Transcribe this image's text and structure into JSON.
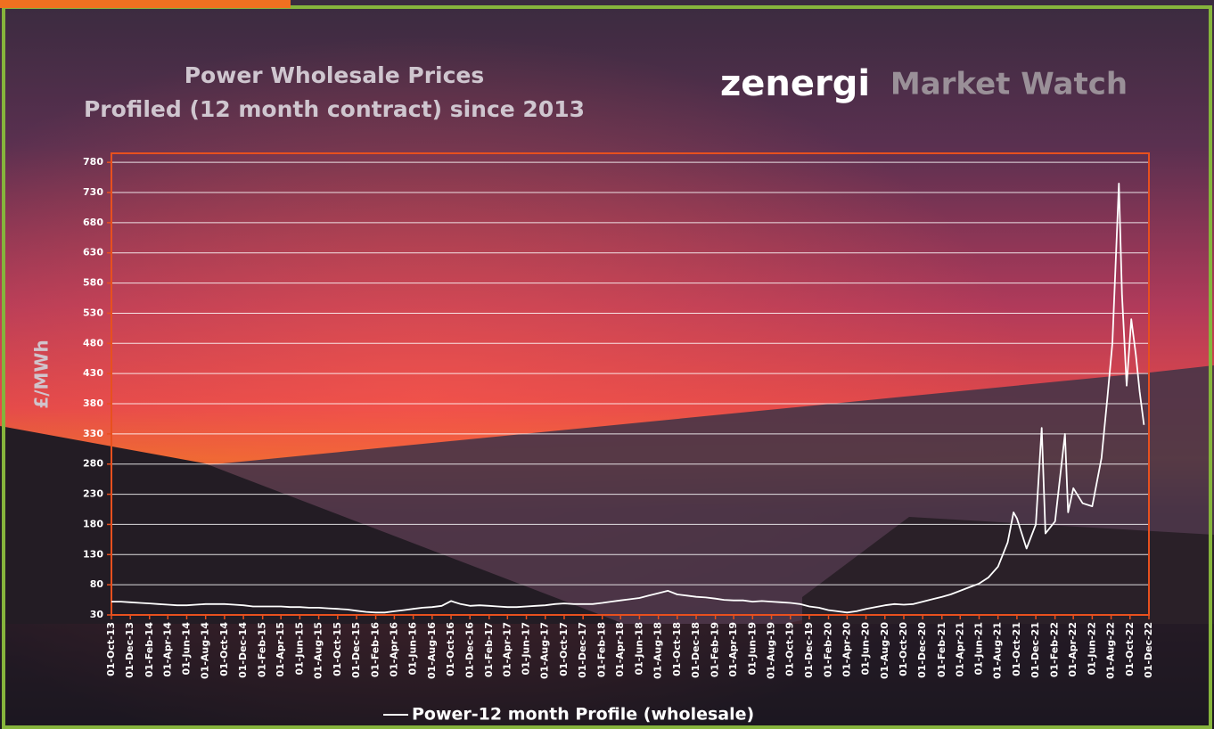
{
  "logo": {
    "name": "zenergi",
    "tagline": "Market Watch"
  },
  "chart_data": {
    "type": "line",
    "title": "Power Wholesale Prices",
    "subtitle": "Profiled (12 month contract) since 2013",
    "y_label": "£/MWh",
    "x": [
      "2013-10-01",
      "2013-11-01",
      "2013-12-01",
      "2014-01-01",
      "2014-02-01",
      "2014-03-01",
      "2014-04-01",
      "2014-05-01",
      "2014-06-01",
      "2014-07-01",
      "2014-08-01",
      "2014-09-01",
      "2014-10-01",
      "2014-11-01",
      "2014-12-01",
      "2015-01-01",
      "2015-02-01",
      "2015-03-01",
      "2015-04-01",
      "2015-05-01",
      "2015-06-01",
      "2015-07-01",
      "2015-08-01",
      "2015-09-01",
      "2015-10-01",
      "2015-11-01",
      "2015-12-01",
      "2016-01-01",
      "2016-02-01",
      "2016-03-01",
      "2016-04-01",
      "2016-05-01",
      "2016-06-01",
      "2016-07-01",
      "2016-08-01",
      "2016-09-01",
      "2016-10-01",
      "2016-11-01",
      "2016-12-01",
      "2017-01-01",
      "2017-02-01",
      "2017-03-01",
      "2017-04-01",
      "2017-05-01",
      "2017-06-01",
      "2017-07-01",
      "2017-08-01",
      "2017-09-01",
      "2017-10-01",
      "2017-11-01",
      "2017-12-01",
      "2018-01-01",
      "2018-02-01",
      "2018-03-01",
      "2018-04-01",
      "2018-05-01",
      "2018-06-01",
      "2018-07-01",
      "2018-08-01",
      "2018-09-01",
      "2018-10-01",
      "2018-11-01",
      "2018-12-01",
      "2019-01-01",
      "2019-02-01",
      "2019-03-01",
      "2019-04-01",
      "2019-05-01",
      "2019-06-01",
      "2019-07-01",
      "2019-08-01",
      "2019-09-01",
      "2019-10-01",
      "2019-11-01",
      "2019-12-01",
      "2020-01-01",
      "2020-02-01",
      "2020-03-01",
      "2020-04-01",
      "2020-05-01",
      "2020-06-01",
      "2020-07-01",
      "2020-08-01",
      "2020-09-01",
      "2020-10-01",
      "2020-11-01",
      "2020-12-01",
      "2021-01-01",
      "2021-02-01",
      "2021-03-01",
      "2021-04-01",
      "2021-05-01",
      "2021-06-01",
      "2021-07-01",
      "2021-08-01",
      "2021-09-01",
      "2021-09-20",
      "2021-10-01",
      "2021-11-01",
      "2021-12-01",
      "2021-12-20",
      "2022-01-01",
      "2022-02-01",
      "2022-03-05",
      "2022-03-15",
      "2022-04-01",
      "2022-05-01",
      "2022-06-01",
      "2022-07-01",
      "2022-07-20",
      "2022-08-05",
      "2022-08-26",
      "2022-09-05",
      "2022-09-20",
      "2022-10-05",
      "2022-10-20",
      "2022-11-01",
      "2022-11-15"
    ],
    "series": [
      {
        "name": "Power-12 month Profile (wholesale)",
        "color": "#ffffff",
        "values": [
          52,
          52,
          51,
          50,
          49,
          48,
          47,
          46,
          46,
          47,
          48,
          48,
          48,
          47,
          46,
          44,
          44,
          44,
          44,
          43,
          43,
          42,
          42,
          41,
          40,
          39,
          37,
          35,
          34,
          34,
          36,
          38,
          40,
          42,
          43,
          45,
          53,
          48,
          45,
          46,
          45,
          44,
          43,
          43,
          44,
          45,
          46,
          48,
          49,
          48,
          48,
          48,
          50,
          52,
          54,
          56,
          58,
          62,
          66,
          70,
          64,
          62,
          60,
          59,
          57,
          55,
          54,
          54,
          52,
          53,
          52,
          51,
          50,
          48,
          44,
          42,
          38,
          36,
          34,
          36,
          40,
          43,
          46,
          48,
          47,
          48,
          52,
          56,
          60,
          64,
          70,
          76,
          82,
          92,
          110,
          150,
          200,
          190,
          140,
          180,
          340,
          165,
          185,
          330,
          200,
          240,
          215,
          210,
          290,
          390,
          480,
          745,
          560,
          410,
          520,
          460,
          400,
          345
        ]
      }
    ],
    "xlim": [
      "2013-10-01",
      "2022-12-01"
    ],
    "xticks": [
      {
        "value": "2013-10-01",
        "label": "01-Oct-13"
      },
      {
        "value": "2013-12-01",
        "label": "01-Dec-13"
      },
      {
        "value": "2014-02-01",
        "label": "01-Feb-14"
      },
      {
        "value": "2014-04-01",
        "label": "01-Apr-14"
      },
      {
        "value": "2014-06-01",
        "label": "01-Jun-14"
      },
      {
        "value": "2014-08-01",
        "label": "01-Aug-14"
      },
      {
        "value": "2014-10-01",
        "label": "01-Oct-14"
      },
      {
        "value": "2014-12-01",
        "label": "01-Dec-14"
      },
      {
        "value": "2015-02-01",
        "label": "01-Feb-15"
      },
      {
        "value": "2015-04-01",
        "label": "01-Apr-15"
      },
      {
        "value": "2015-06-01",
        "label": "01-Jun-15"
      },
      {
        "value": "2015-08-01",
        "label": "01-Aug-15"
      },
      {
        "value": "2015-10-01",
        "label": "01-Oct-15"
      },
      {
        "value": "2015-12-01",
        "label": "01-Dec-15"
      },
      {
        "value": "2016-02-01",
        "label": "01-Feb-16"
      },
      {
        "value": "2016-04-01",
        "label": "01-Apr-16"
      },
      {
        "value": "2016-06-01",
        "label": "01-Jun-16"
      },
      {
        "value": "2016-08-01",
        "label": "01-Aug-16"
      },
      {
        "value": "2016-10-01",
        "label": "01-Oct-16"
      },
      {
        "value": "2016-12-01",
        "label": "01-Dec-16"
      },
      {
        "value": "2017-02-01",
        "label": "01-Feb-17"
      },
      {
        "value": "2017-04-01",
        "label": "01-Apr-17"
      },
      {
        "value": "2017-06-01",
        "label": "01-Jun-17"
      },
      {
        "value": "2017-08-01",
        "label": "01-Aug-17"
      },
      {
        "value": "2017-10-01",
        "label": "01-Oct-17"
      },
      {
        "value": "2017-12-01",
        "label": "01-Dec-17"
      },
      {
        "value": "2018-02-01",
        "label": "01-Feb-18"
      },
      {
        "value": "2018-04-01",
        "label": "01-Apr-18"
      },
      {
        "value": "2018-06-01",
        "label": "01-Jun-18"
      },
      {
        "value": "2018-08-01",
        "label": "01-Aug-18"
      },
      {
        "value": "2018-10-01",
        "label": "01-Oct-18"
      },
      {
        "value": "2018-12-01",
        "label": "01-Dec-18"
      },
      {
        "value": "2019-02-01",
        "label": "01-Feb-19"
      },
      {
        "value": "2019-04-01",
        "label": "01-Apr-19"
      },
      {
        "value": "2019-06-01",
        "label": "01-Jun-19"
      },
      {
        "value": "2019-08-01",
        "label": "01-Aug-19"
      },
      {
        "value": "2019-10-01",
        "label": "01-Oct-19"
      },
      {
        "value": "2019-12-01",
        "label": "01-Dec-19"
      },
      {
        "value": "2020-02-01",
        "label": "01-Feb-20"
      },
      {
        "value": "2020-04-01",
        "label": "01-Apr-20"
      },
      {
        "value": "2020-06-01",
        "label": "01-Jun-20"
      },
      {
        "value": "2020-08-01",
        "label": "01-Aug-20"
      },
      {
        "value": "2020-10-01",
        "label": "01-Oct-20"
      },
      {
        "value": "2020-12-01",
        "label": "01-Dec-20"
      },
      {
        "value": "2021-02-01",
        "label": "01-Feb-21"
      },
      {
        "value": "2021-04-01",
        "label": "01-Apr-21"
      },
      {
        "value": "2021-06-01",
        "label": "01-Jun-21"
      },
      {
        "value": "2021-08-01",
        "label": "01-Aug-21"
      },
      {
        "value": "2021-10-01",
        "label": "01-Oct-21"
      },
      {
        "value": "2021-12-01",
        "label": "01-Dec-21"
      },
      {
        "value": "2022-02-01",
        "label": "01-Feb-22"
      },
      {
        "value": "2022-04-01",
        "label": "01-Apr-22"
      },
      {
        "value": "2022-06-01",
        "label": "01-Jun-22"
      },
      {
        "value": "2022-08-01",
        "label": "01-Aug-22"
      },
      {
        "value": "2022-10-01",
        "label": "01-Oct-22"
      },
      {
        "value": "2022-12-01",
        "label": "01-Dec-22"
      }
    ],
    "ylim": [
      30,
      795
    ],
    "yticks": [
      30,
      80,
      130,
      180,
      230,
      280,
      330,
      380,
      430,
      480,
      530,
      580,
      630,
      680,
      730,
      780
    ],
    "grid": true,
    "frame_color": "#e8501e",
    "legend": "bottom"
  }
}
